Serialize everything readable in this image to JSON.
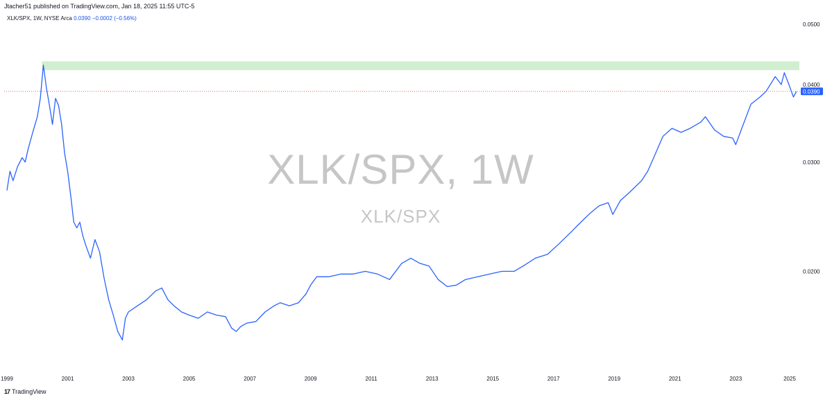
{
  "header": {
    "publisher_line": "Jtacher51 published on TradingView.com, Jan 18, 2025 11:55 UTC-5"
  },
  "legend": {
    "symbol_info": "XLK/SPX, 1W, NYSE Arca",
    "last_value": "0.0390",
    "change": "−0.0002 (−0.56%)"
  },
  "watermark": {
    "main": "XLK/SPX, 1W",
    "sub": "XLK/SPX"
  },
  "footer": {
    "logo_glyph": "17",
    "brand": "TradingView"
  },
  "colors": {
    "line": "#2962ff",
    "zone": "#c8ecc9",
    "price_line": "#e0504e",
    "price_label_bg": "#2962ff"
  },
  "chart_data": {
    "type": "line",
    "x_ticks": [
      "1999",
      "2001",
      "2003",
      "2005",
      "2007",
      "2009",
      "2011",
      "2013",
      "2015",
      "2017",
      "2019",
      "2021",
      "2023",
      "2025"
    ],
    "y_ticks": [
      "0.0200",
      "0.0300",
      "0.0400",
      "0.0500"
    ],
    "xlim": [
      1999.0,
      2025.05
    ],
    "ylim": [
      0.014,
      0.052
    ],
    "log_scale": true,
    "grid": false,
    "current_price_label": "0.0390",
    "current_price": 0.039,
    "resistance_zone": {
      "x_start": 2000.15,
      "x_end": 2025.2,
      "y_low": 0.0422,
      "y_high": 0.0436
    },
    "series": [
      {
        "points": [
          [
            1999.0,
            0.027
          ],
          [
            1999.1,
            0.029
          ],
          [
            1999.2,
            0.028
          ],
          [
            1999.35,
            0.0295
          ],
          [
            1999.5,
            0.0305
          ],
          [
            1999.6,
            0.03
          ],
          [
            1999.7,
            0.0315
          ],
          [
            1999.85,
            0.0335
          ],
          [
            2000.0,
            0.0355
          ],
          [
            2000.1,
            0.038
          ],
          [
            2000.2,
            0.043
          ],
          [
            2000.3,
            0.0395
          ],
          [
            2000.4,
            0.037
          ],
          [
            2000.5,
            0.0345
          ],
          [
            2000.6,
            0.038
          ],
          [
            2000.7,
            0.037
          ],
          [
            2000.8,
            0.0345
          ],
          [
            2000.9,
            0.031
          ],
          [
            2001.0,
            0.029
          ],
          [
            2001.1,
            0.0265
          ],
          [
            2001.2,
            0.024
          ],
          [
            2001.3,
            0.0235
          ],
          [
            2001.4,
            0.024
          ],
          [
            2001.5,
            0.0228
          ],
          [
            2001.6,
            0.022
          ],
          [
            2001.75,
            0.021
          ],
          [
            2001.9,
            0.0225
          ],
          [
            2002.05,
            0.0215
          ],
          [
            2002.2,
            0.0195
          ],
          [
            2002.35,
            0.018
          ],
          [
            2002.5,
            0.017
          ],
          [
            2002.65,
            0.016
          ],
          [
            2002.8,
            0.0155
          ],
          [
            2002.9,
            0.0168
          ],
          [
            2003.0,
            0.0172
          ],
          [
            2003.3,
            0.0176
          ],
          [
            2003.6,
            0.018
          ],
          [
            2003.9,
            0.0186
          ],
          [
            2004.1,
            0.0188
          ],
          [
            2004.3,
            0.018
          ],
          [
            2004.5,
            0.0176
          ],
          [
            2004.75,
            0.0172
          ],
          [
            2005.0,
            0.017
          ],
          [
            2005.3,
            0.0168
          ],
          [
            2005.6,
            0.0172
          ],
          [
            2005.9,
            0.017
          ],
          [
            2006.2,
            0.0169
          ],
          [
            2006.4,
            0.0162
          ],
          [
            2006.55,
            0.016
          ],
          [
            2006.7,
            0.0163
          ],
          [
            2006.9,
            0.0165
          ],
          [
            2007.2,
            0.0166
          ],
          [
            2007.5,
            0.0172
          ],
          [
            2007.8,
            0.0176
          ],
          [
            2008.0,
            0.0178
          ],
          [
            2008.3,
            0.0176
          ],
          [
            2008.6,
            0.0178
          ],
          [
            2008.85,
            0.0184
          ],
          [
            2009.0,
            0.019
          ],
          [
            2009.2,
            0.0196
          ],
          [
            2009.6,
            0.0196
          ],
          [
            2010.0,
            0.0198
          ],
          [
            2010.4,
            0.0198
          ],
          [
            2010.8,
            0.02
          ],
          [
            2011.2,
            0.0198
          ],
          [
            2011.6,
            0.0194
          ],
          [
            2012.0,
            0.0206
          ],
          [
            2012.3,
            0.021
          ],
          [
            2012.6,
            0.0206
          ],
          [
            2012.9,
            0.0204
          ],
          [
            2013.2,
            0.0194
          ],
          [
            2013.5,
            0.0189
          ],
          [
            2013.8,
            0.019
          ],
          [
            2014.1,
            0.0194
          ],
          [
            2014.5,
            0.0196
          ],
          [
            2014.9,
            0.0198
          ],
          [
            2015.3,
            0.02
          ],
          [
            2015.7,
            0.02
          ],
          [
            2016.0,
            0.0204
          ],
          [
            2016.4,
            0.021
          ],
          [
            2016.8,
            0.0213
          ],
          [
            2017.2,
            0.0222
          ],
          [
            2017.6,
            0.0232
          ],
          [
            2017.9,
            0.024
          ],
          [
            2018.2,
            0.0248
          ],
          [
            2018.5,
            0.0255
          ],
          [
            2018.8,
            0.0258
          ],
          [
            2018.95,
            0.0247
          ],
          [
            2019.2,
            0.026
          ],
          [
            2019.5,
            0.0268
          ],
          [
            2019.9,
            0.028
          ],
          [
            2020.1,
            0.029
          ],
          [
            2020.3,
            0.0305
          ],
          [
            2020.6,
            0.033
          ],
          [
            2020.9,
            0.034
          ],
          [
            2021.2,
            0.0335
          ],
          [
            2021.5,
            0.034
          ],
          [
            2021.85,
            0.0348
          ],
          [
            2022.0,
            0.0355
          ],
          [
            2022.3,
            0.0338
          ],
          [
            2022.6,
            0.033
          ],
          [
            2022.9,
            0.0328
          ],
          [
            2023.0,
            0.032
          ],
          [
            2023.2,
            0.034
          ],
          [
            2023.5,
            0.0372
          ],
          [
            2023.8,
            0.0382
          ],
          [
            2024.0,
            0.039
          ],
          [
            2024.3,
            0.0412
          ],
          [
            2024.5,
            0.04
          ],
          [
            2024.6,
            0.0418
          ],
          [
            2024.75,
            0.04
          ],
          [
            2024.9,
            0.0382
          ],
          [
            2025.0,
            0.039
          ]
        ]
      }
    ]
  }
}
